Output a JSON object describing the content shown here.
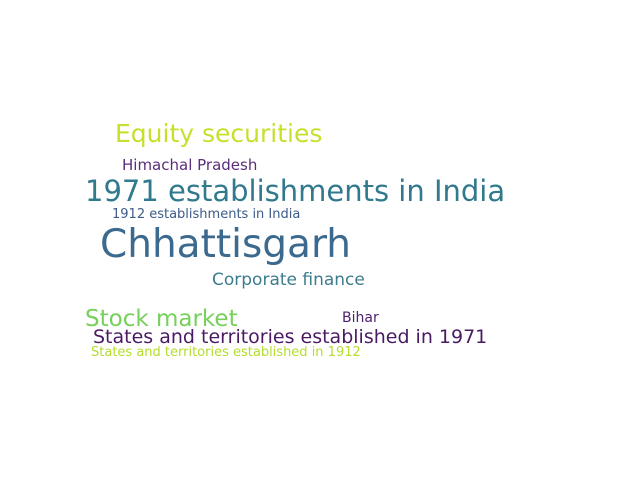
{
  "word_cloud": {
    "words": [
      {
        "text": "Equity securities",
        "color": "#c8df2c"
      },
      {
        "text": "Himachal Pradesh",
        "color": "#5b2d7a"
      },
      {
        "text": "1971 establishments in India",
        "color": "#31798c"
      },
      {
        "text": "1912 establishments in India",
        "color": "#3c5b8a"
      },
      {
        "text": "Chhattisgarh",
        "color": "#3b6a8e"
      },
      {
        "text": "Corporate finance",
        "color": "#3c7c8e"
      },
      {
        "text": "Stock market",
        "color": "#76d05a"
      },
      {
        "text": "Bihar",
        "color": "#4b2270"
      },
      {
        "text": "States and territories established in 1971",
        "color": "#4a1a63"
      },
      {
        "text": "States and territories established in 1912",
        "color": "#b4dd2e"
      }
    ]
  }
}
